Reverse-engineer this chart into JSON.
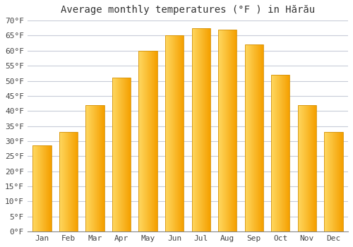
{
  "title": "Average monthly temperatures (°F ) in Hărău",
  "months": [
    "Jan",
    "Feb",
    "Mar",
    "Apr",
    "May",
    "Jun",
    "Jul",
    "Aug",
    "Sep",
    "Oct",
    "Nov",
    "Dec"
  ],
  "values": [
    28.5,
    33,
    42,
    51,
    60,
    65,
    67.5,
    67,
    62,
    52,
    42,
    33
  ],
  "ylim": [
    0,
    70
  ],
  "yticks": [
    0,
    5,
    10,
    15,
    20,
    25,
    30,
    35,
    40,
    45,
    50,
    55,
    60,
    65,
    70
  ],
  "bar_color_left": "#FFD060",
  "bar_color_right": "#F5A800",
  "bar_edge_color": "#D4920A",
  "background_color": "#ffffff",
  "grid_color": "#c8ccd8",
  "title_fontsize": 10,
  "tick_fontsize": 8
}
